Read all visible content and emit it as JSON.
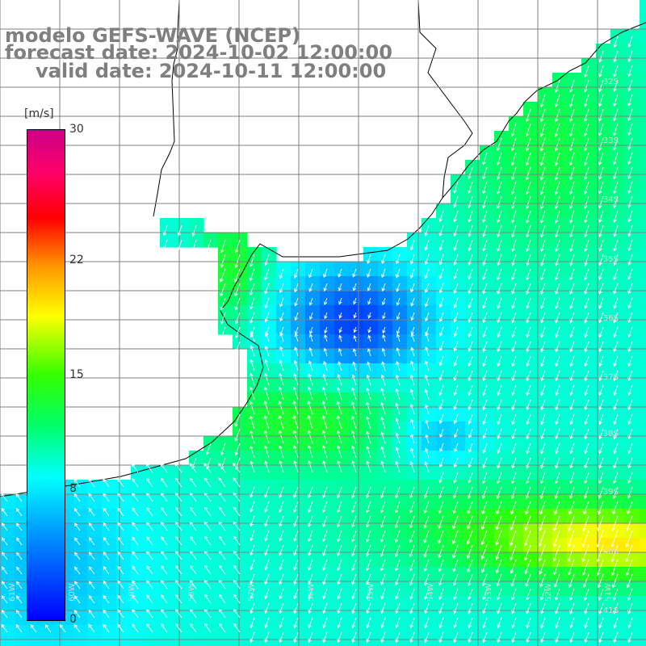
{
  "title": {
    "model": "modelo GEFS-WAVE (NCEP)",
    "forecast": "forecast date: 2024-10-02 12:00:00",
    "valid": "valid date: 2024-10-11 12:00:00"
  },
  "colorbar": {
    "unit": "[m/s]",
    "ticks": [
      "30",
      "22",
      "15",
      "8",
      "0"
    ],
    "tick_values": [
      30,
      22,
      15,
      8,
      0
    ],
    "min": 0,
    "max": 30,
    "colors": [
      "#0000ff",
      "#0099ff",
      "#00ffff",
      "#00ff66",
      "#33ff00",
      "#ffff00",
      "#ff9900",
      "#ff0000",
      "#ff0066",
      "#cc0088"
    ]
  },
  "map": {
    "lat_labels": [
      "32S",
      "33S",
      "34S",
      "35S",
      "36S",
      "37S",
      "38S",
      "39S",
      "40S",
      "41S"
    ],
    "lat_values": [
      -32,
      -33,
      -34,
      -35,
      -36,
      -37,
      -38,
      -39,
      -40,
      -41
    ],
    "lon_labels": [
      "61W",
      "60W",
      "59W",
      "58W",
      "57W",
      "56W",
      "55W",
      "54W",
      "53W",
      "52W",
      "51W"
    ],
    "lon_values": [
      -61,
      -60,
      -59,
      -58,
      -57,
      -56,
      -55,
      -54,
      -53,
      -52,
      -51
    ],
    "lon_range": [
      -61.5,
      -50.6
    ],
    "lat_range": [
      -41.6,
      -30.9
    ],
    "land_color": "#ffffff",
    "grid": true,
    "grid_color": "#808080",
    "coastline_color": "#000000",
    "arrow_color": "#ffffff"
  }
}
